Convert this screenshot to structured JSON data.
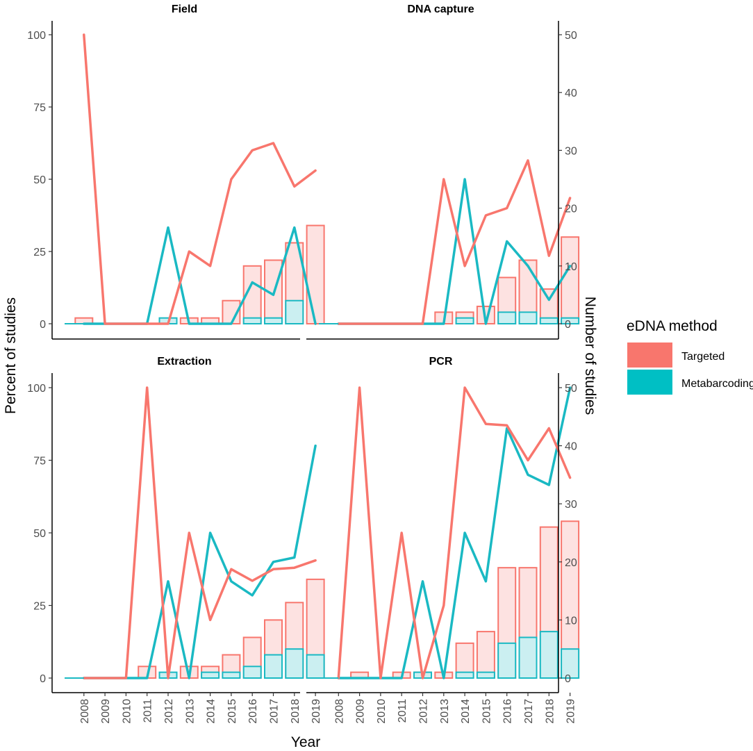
{
  "chart_data": {
    "type": "bar+line",
    "xlabel": "Year",
    "ylabel_left": "Percent of studies",
    "ylabel_right": "Number of studies",
    "ylim_left": [
      0,
      100
    ],
    "ylim_right": [
      0,
      50
    ],
    "left_ticks": [
      0,
      25,
      50,
      75,
      100
    ],
    "right_ticks": [
      0,
      10,
      20,
      30,
      40,
      50
    ],
    "years": [
      "2008",
      "2009",
      "2010",
      "2011",
      "2012",
      "2013",
      "2014",
      "2015",
      "2016",
      "2017",
      "2018",
      "2019"
    ],
    "legend": {
      "title": "eDNA method",
      "items": [
        {
          "label": "Targeted",
          "fill": "#f8766d",
          "line": "#f8766d"
        },
        {
          "label": "Metabarcoding",
          "fill": "#00bfc4",
          "line": "#00bfc4"
        }
      ]
    },
    "colors": {
      "targeted_line": "#f8766d",
      "targeted_bar_fill": "#fde2e1",
      "metabarcoding_line": "#1ab9c3",
      "metabarcoding_bar_fill": "#cbeff1"
    },
    "panels": [
      {
        "title": "Field",
        "targeted_count": [
          1,
          0,
          0,
          0,
          0,
          1,
          1,
          4,
          10,
          11,
          14,
          17
        ],
        "metabarcoding_count": [
          0,
          0,
          0,
          0,
          1,
          0,
          0,
          0,
          1,
          1,
          4,
          0
        ],
        "targeted_percent": [
          100,
          0,
          0,
          0,
          0,
          25,
          20,
          50,
          60,
          62.5,
          47.5,
          53
        ],
        "metabarcoding_percent": [
          0,
          0,
          0,
          0,
          33.3,
          0,
          0,
          0,
          14.3,
          10,
          33.3,
          0
        ]
      },
      {
        "title": "DNA capture",
        "targeted_count": [
          0,
          0,
          0,
          0,
          0,
          2,
          2,
          3,
          8,
          11,
          6,
          15
        ],
        "metabarcoding_count": [
          0,
          0,
          0,
          0,
          0,
          0,
          1,
          0,
          2,
          2,
          1,
          1
        ],
        "targeted_percent": [
          0,
          0,
          0,
          0,
          0,
          50,
          20,
          37.5,
          40,
          56.5,
          23.5,
          43.5
        ],
        "metabarcoding_percent": [
          0,
          0,
          0,
          0,
          0,
          0,
          50,
          0,
          28.5,
          20,
          8.3,
          20
        ]
      },
      {
        "title": "Extraction",
        "targeted_count": [
          0,
          0,
          0,
          2,
          0,
          2,
          2,
          4,
          7,
          10,
          13,
          17
        ],
        "metabarcoding_count": [
          0,
          0,
          0,
          0,
          1,
          0,
          1,
          1,
          2,
          4,
          5,
          4
        ],
        "targeted_percent": [
          0,
          0,
          0,
          100,
          0,
          50,
          20,
          37.5,
          33.5,
          37.5,
          38,
          40.5
        ],
        "metabarcoding_percent": [
          0,
          0,
          0,
          0,
          33.3,
          0,
          50,
          33.3,
          28.5,
          40,
          41.5,
          80
        ]
      },
      {
        "title": "PCR",
        "targeted_count": [
          0,
          1,
          0,
          1,
          1,
          1,
          6,
          8,
          19,
          19,
          26,
          27
        ],
        "metabarcoding_count": [
          0,
          0,
          0,
          0,
          1,
          0,
          1,
          1,
          6,
          7,
          8,
          5
        ],
        "targeted_percent": [
          0,
          100,
          0,
          50,
          0,
          25,
          100,
          87.5,
          87,
          75,
          86,
          69
        ],
        "metabarcoding_percent": [
          0,
          0,
          0,
          0,
          33.3,
          0,
          50,
          33.3,
          86,
          70,
          66.5,
          100
        ]
      }
    ]
  }
}
